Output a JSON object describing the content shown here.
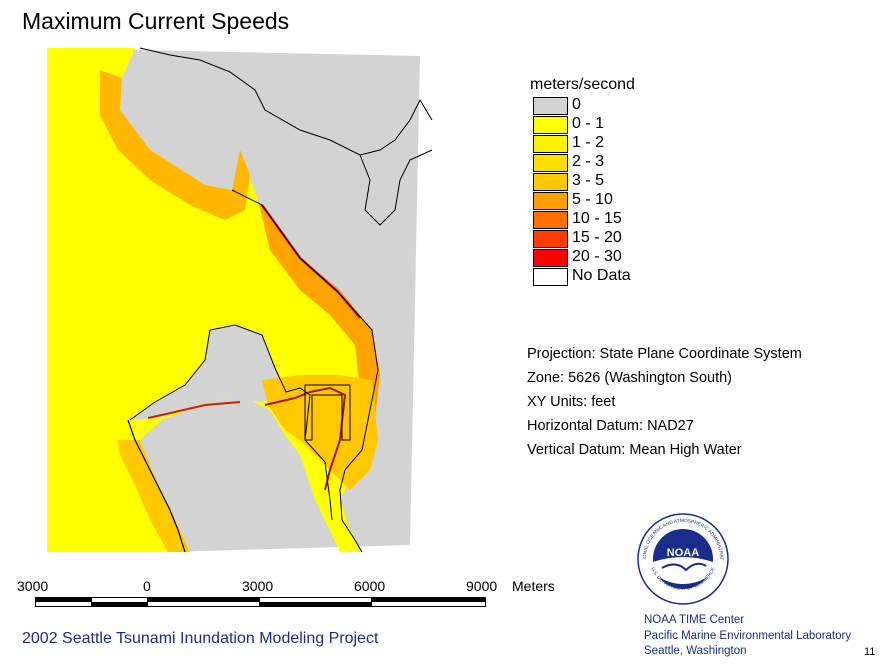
{
  "title": "Maximum Current Speeds",
  "legend": {
    "title": "meters/second",
    "items": [
      {
        "label": "0",
        "color": "#d3d3d3"
      },
      {
        "label": "0 - 1",
        "color": "#ffff00"
      },
      {
        "label": "1 - 2",
        "color": "#fff000"
      },
      {
        "label": "2 - 3",
        "color": "#ffdd00"
      },
      {
        "label": "3 - 5",
        "color": "#ffc800"
      },
      {
        "label": "5 - 10",
        "color": "#ff9e00"
      },
      {
        "label": "10 - 15",
        "color": "#ff6e00"
      },
      {
        "label": "15 - 20",
        "color": "#ff3d00"
      },
      {
        "label": "20 - 30",
        "color": "#ff0000"
      },
      {
        "label": "No Data",
        "color": "#ffffff"
      }
    ]
  },
  "projection_info": [
    "Projection: State Plane Coordinate System",
    "Zone: 5626 (Washington South)",
    "XY Units: feet",
    "Horizontal Datum: NAD27",
    "Vertical Datum: Mean High Water"
  ],
  "scale": {
    "ticks": [
      "3000",
      "0",
      "3000",
      "6000",
      "9000"
    ],
    "unit": "Meters"
  },
  "project_title": "2002 Seattle Tsunami Inundation Modeling Project",
  "footer_lines": [
    "NOAA TIME Center",
    "Pacific Marine Environmental Laboratory",
    "Seattle, Washington"
  ],
  "page_number": "11",
  "logo": {
    "name": "NOAA",
    "ring_text": "NATIONAL OCEANIC AND ATMOSPHERIC ADMINISTRATION",
    "lower_ring_text": "U.S. DEPARTMENT OF COMMERCE"
  }
}
